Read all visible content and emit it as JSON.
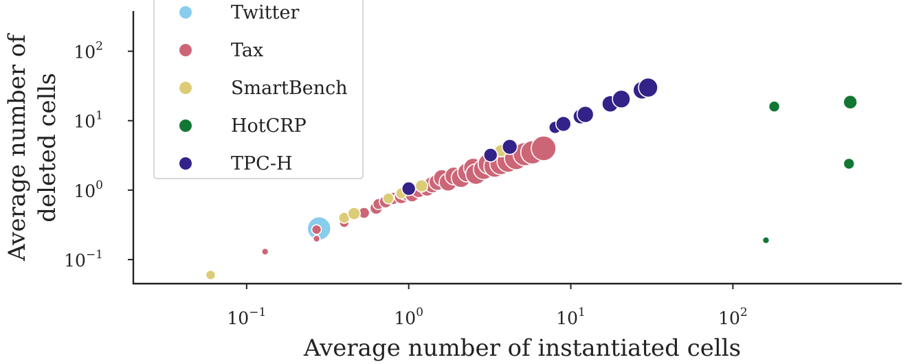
{
  "chart_data": {
    "type": "scatter",
    "title": "",
    "xlabel": "Average number of instantiated cells",
    "ylabel": "Average number of deleted cells",
    "xscale": "log",
    "yscale": "log",
    "xlim": [
      0.02,
      1100
    ],
    "ylim": [
      0.045,
      380
    ],
    "xticks": [
      {
        "value": 0.1,
        "base": "10",
        "exp": "−1"
      },
      {
        "value": 1,
        "base": "10",
        "exp": "0"
      },
      {
        "value": 10,
        "base": "10",
        "exp": "1"
      },
      {
        "value": 100,
        "base": "10",
        "exp": "2"
      }
    ],
    "yticks": [
      {
        "value": 0.1,
        "base": "10",
        "exp": "−1"
      },
      {
        "value": 1,
        "base": "10",
        "exp": "0"
      },
      {
        "value": 10,
        "base": "10",
        "exp": "1"
      },
      {
        "value": 100,
        "base": "10",
        "exp": "2"
      }
    ],
    "grid": false,
    "legend_position": "top-left",
    "series": [
      {
        "name": "Twitter",
        "color": "#88ccee",
        "points": [
          {
            "x": 0.28,
            "y": 0.28,
            "s": 17
          }
        ]
      },
      {
        "name": "Tax",
        "color": "#cc6677",
        "points": [
          {
            "x": 0.13,
            "y": 0.13,
            "s": 5
          },
          {
            "x": 0.27,
            "y": 0.2,
            "s": 5
          },
          {
            "x": 0.27,
            "y": 0.27,
            "s": 7
          },
          {
            "x": 0.4,
            "y": 0.34,
            "s": 7
          },
          {
            "x": 0.53,
            "y": 0.47,
            "s": 8
          },
          {
            "x": 0.63,
            "y": 0.55,
            "s": 9
          },
          {
            "x": 0.65,
            "y": 0.63,
            "s": 8
          },
          {
            "x": 0.72,
            "y": 0.68,
            "s": 9
          },
          {
            "x": 0.8,
            "y": 0.76,
            "s": 9
          },
          {
            "x": 0.9,
            "y": 0.8,
            "s": 10
          },
          {
            "x": 0.95,
            "y": 0.9,
            "s": 10
          },
          {
            "x": 1.05,
            "y": 0.85,
            "s": 10
          },
          {
            "x": 1.15,
            "y": 1.0,
            "s": 11
          },
          {
            "x": 1.3,
            "y": 1.05,
            "s": 11
          },
          {
            "x": 1.4,
            "y": 1.2,
            "s": 12
          },
          {
            "x": 1.5,
            "y": 1.3,
            "s": 12
          },
          {
            "x": 1.6,
            "y": 1.5,
            "s": 12
          },
          {
            "x": 1.75,
            "y": 1.3,
            "s": 13
          },
          {
            "x": 1.9,
            "y": 1.6,
            "s": 13
          },
          {
            "x": 2.1,
            "y": 1.5,
            "s": 14
          },
          {
            "x": 2.3,
            "y": 1.8,
            "s": 14
          },
          {
            "x": 2.5,
            "y": 2.1,
            "s": 14
          },
          {
            "x": 2.6,
            "y": 1.7,
            "s": 15
          },
          {
            "x": 2.9,
            "y": 2.0,
            "s": 15
          },
          {
            "x": 3.1,
            "y": 2.4,
            "s": 15
          },
          {
            "x": 3.4,
            "y": 2.2,
            "s": 16
          },
          {
            "x": 3.7,
            "y": 2.4,
            "s": 16
          },
          {
            "x": 4.1,
            "y": 2.6,
            "s": 16
          },
          {
            "x": 4.6,
            "y": 2.9,
            "s": 17
          },
          {
            "x": 5.2,
            "y": 3.3,
            "s": 17
          },
          {
            "x": 5.8,
            "y": 3.5,
            "s": 17
          },
          {
            "x": 6.8,
            "y": 4.0,
            "s": 18
          }
        ]
      },
      {
        "name": "SmartBench",
        "color": "#ddcc77",
        "points": [
          {
            "x": 0.06,
            "y": 0.06,
            "s": 7
          },
          {
            "x": 0.4,
            "y": 0.4,
            "s": 8
          },
          {
            "x": 0.46,
            "y": 0.46,
            "s": 9
          },
          {
            "x": 0.75,
            "y": 0.76,
            "s": 8
          },
          {
            "x": 0.9,
            "y": 0.9,
            "s": 8
          },
          {
            "x": 1.2,
            "y": 1.15,
            "s": 9
          },
          {
            "x": 3.7,
            "y": 3.7,
            "s": 9
          }
        ]
      },
      {
        "name": "HotCRP",
        "color": "#117733",
        "points": [
          {
            "x": 160,
            "y": 0.19,
            "s": 5
          },
          {
            "x": 180,
            "y": 16,
            "s": 8
          },
          {
            "x": 520,
            "y": 2.4,
            "s": 8
          },
          {
            "x": 530,
            "y": 18.5,
            "s": 10
          }
        ]
      },
      {
        "name": "TPC-H",
        "color": "#332288",
        "points": [
          {
            "x": 1.0,
            "y": 1.05,
            "s": 10
          },
          {
            "x": 3.2,
            "y": 3.2,
            "s": 10
          },
          {
            "x": 4.2,
            "y": 4.2,
            "s": 11
          },
          {
            "x": 8.0,
            "y": 8.0,
            "s": 9
          },
          {
            "x": 9.0,
            "y": 9.0,
            "s": 11
          },
          {
            "x": 11.5,
            "y": 11.5,
            "s": 11
          },
          {
            "x": 12.3,
            "y": 12.3,
            "s": 12
          },
          {
            "x": 17.5,
            "y": 17.5,
            "s": 12
          },
          {
            "x": 20.5,
            "y": 20.5,
            "s": 13
          },
          {
            "x": 27.5,
            "y": 27.5,
            "s": 13
          },
          {
            "x": 30,
            "y": 30,
            "s": 14
          }
        ]
      }
    ]
  }
}
